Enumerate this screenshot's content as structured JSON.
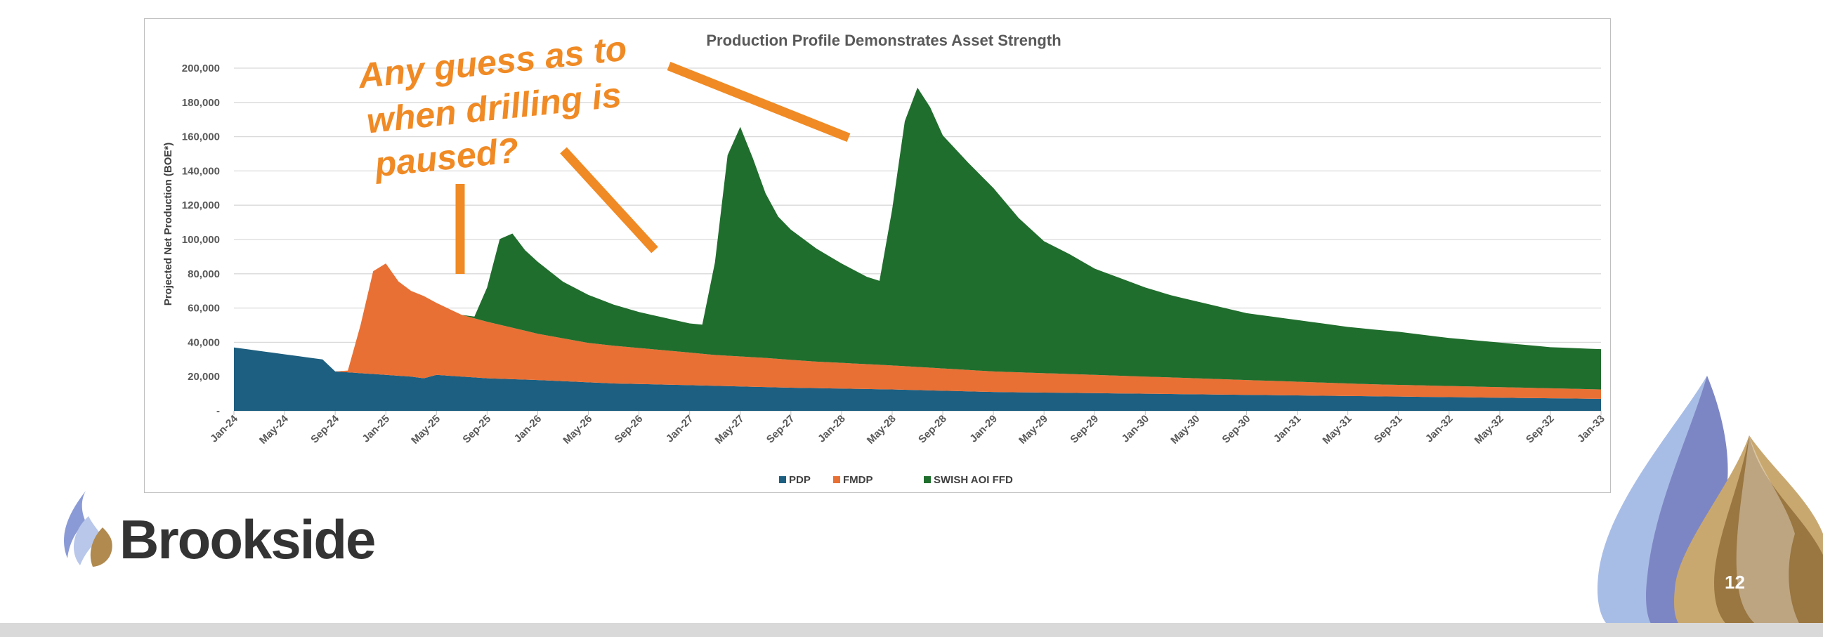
{
  "slide": {
    "brand_name": "Brookside",
    "page_number": "12"
  },
  "colors": {
    "pdp": "#1d5f80",
    "fmdp": "#e87035",
    "swish": "#206e2d",
    "annotation": "#f08a24",
    "logo_blue": "#8a9ad6",
    "logo_gold": "#b08a4f"
  },
  "annotation": {
    "lines": [
      "Any guess as to",
      "when drilling is",
      "paused?"
    ]
  },
  "chart_data": {
    "type": "area",
    "stacked": true,
    "title": "Production Profile Demonstrates Asset Strength",
    "ylabel": "Projected Net Production (BOE*)",
    "xlabel": "",
    "ylim": [
      0,
      200000
    ],
    "y_ticks": [
      0,
      20000,
      40000,
      60000,
      80000,
      100000,
      120000,
      140000,
      160000,
      180000,
      200000
    ],
    "y_tick_labels": [
      "-",
      "20,000",
      "40,000",
      "60,000",
      "80,000",
      "100,000",
      "120,000",
      "140,000",
      "160,000",
      "180,000",
      "200,000"
    ],
    "x_range_months": [
      0,
      108
    ],
    "x_ticks_months": [
      0,
      4,
      8,
      12,
      16,
      20,
      24,
      28,
      32,
      36,
      40,
      44,
      48,
      52,
      56,
      60,
      64,
      68,
      72,
      76,
      80,
      84,
      88,
      92,
      96,
      100,
      104,
      108
    ],
    "x_tick_labels": [
      "Jan-24",
      "May-24",
      "Sep-24",
      "Jan-25",
      "May-25",
      "Sep-25",
      "Jan-26",
      "May-26",
      "Sep-26",
      "Jan-27",
      "May-27",
      "Sep-27",
      "Jan-28",
      "May-28",
      "Sep-28",
      "Jan-29",
      "May-29",
      "Sep-29",
      "Jan-30",
      "May-30",
      "Sep-30",
      "Jan-31",
      "May-31",
      "Sep-31",
      "Jan-32",
      "May-32",
      "Sep-32",
      "Jan-33"
    ],
    "legend": [
      "PDP",
      "FMDP",
      "SWISH AOI FFD"
    ],
    "legend_position": "bottom",
    "series": [
      {
        "name": "PDP",
        "points": [
          [
            0,
            37000
          ],
          [
            3,
            34000
          ],
          [
            6,
            31000
          ],
          [
            7,
            30000
          ],
          [
            8,
            23000
          ],
          [
            10,
            22000
          ],
          [
            12,
            21000
          ],
          [
            14,
            20000
          ],
          [
            15,
            19000
          ],
          [
            16,
            21000
          ],
          [
            20,
            19000
          ],
          [
            24,
            18000
          ],
          [
            30,
            16000
          ],
          [
            36,
            15000
          ],
          [
            44,
            13500
          ],
          [
            52,
            12500
          ],
          [
            60,
            11000
          ],
          [
            72,
            10000
          ],
          [
            84,
            9000
          ],
          [
            96,
            8000
          ],
          [
            108,
            7000
          ]
        ]
      },
      {
        "name": "FMDP",
        "points": [
          [
            0,
            0
          ],
          [
            8,
            0
          ],
          [
            9,
            1000
          ],
          [
            10,
            28000
          ],
          [
            11,
            60000
          ],
          [
            12,
            65000
          ],
          [
            13,
            55000
          ],
          [
            14,
            50000
          ],
          [
            15,
            48000
          ],
          [
            16,
            42000
          ],
          [
            18,
            36000
          ],
          [
            20,
            33000
          ],
          [
            22,
            30000
          ],
          [
            24,
            27000
          ],
          [
            26,
            25000
          ],
          [
            28,
            23000
          ],
          [
            30,
            22000
          ],
          [
            34,
            20000
          ],
          [
            38,
            18000
          ],
          [
            42,
            17000
          ],
          [
            46,
            15500
          ],
          [
            50,
            14500
          ],
          [
            54,
            13500
          ],
          [
            60,
            12000
          ],
          [
            66,
            11000
          ],
          [
            72,
            10000
          ],
          [
            78,
            9000
          ],
          [
            84,
            8000
          ],
          [
            90,
            7000
          ],
          [
            96,
            6500
          ],
          [
            102,
            6000
          ],
          [
            108,
            5500
          ]
        ]
      },
      {
        "name": "SWISH AOI FFD",
        "points": [
          [
            0,
            0
          ],
          [
            18,
            0
          ],
          [
            19,
            1000
          ],
          [
            20,
            20000
          ],
          [
            21,
            50000
          ],
          [
            22,
            55000
          ],
          [
            23,
            47000
          ],
          [
            24,
            42000
          ],
          [
            26,
            33000
          ],
          [
            28,
            28000
          ],
          [
            30,
            24000
          ],
          [
            32,
            21000
          ],
          [
            34,
            19000
          ],
          [
            36,
            17000
          ],
          [
            37,
            17000
          ],
          [
            38,
            54000
          ],
          [
            39,
            117000
          ],
          [
            40,
            134000
          ],
          [
            41,
            116000
          ],
          [
            42,
            96000
          ],
          [
            43,
            83000
          ],
          [
            44,
            76000
          ],
          [
            46,
            66000
          ],
          [
            48,
            58000
          ],
          [
            50,
            51000
          ],
          [
            51,
            49000
          ],
          [
            52,
            91000
          ],
          [
            53,
            143000
          ],
          [
            54,
            163000
          ],
          [
            55,
            152000
          ],
          [
            56,
            136000
          ],
          [
            58,
            121000
          ],
          [
            60,
            107000
          ],
          [
            62,
            90000
          ],
          [
            64,
            77000
          ],
          [
            66,
            70000
          ],
          [
            68,
            62000
          ],
          [
            70,
            57000
          ],
          [
            72,
            52000
          ],
          [
            74,
            48000
          ],
          [
            76,
            45000
          ],
          [
            78,
            42000
          ],
          [
            80,
            39000
          ],
          [
            84,
            36000
          ],
          [
            88,
            33000
          ],
          [
            92,
            31000
          ],
          [
            96,
            28000
          ],
          [
            100,
            26000
          ],
          [
            104,
            24000
          ],
          [
            108,
            23500
          ]
        ]
      }
    ]
  }
}
